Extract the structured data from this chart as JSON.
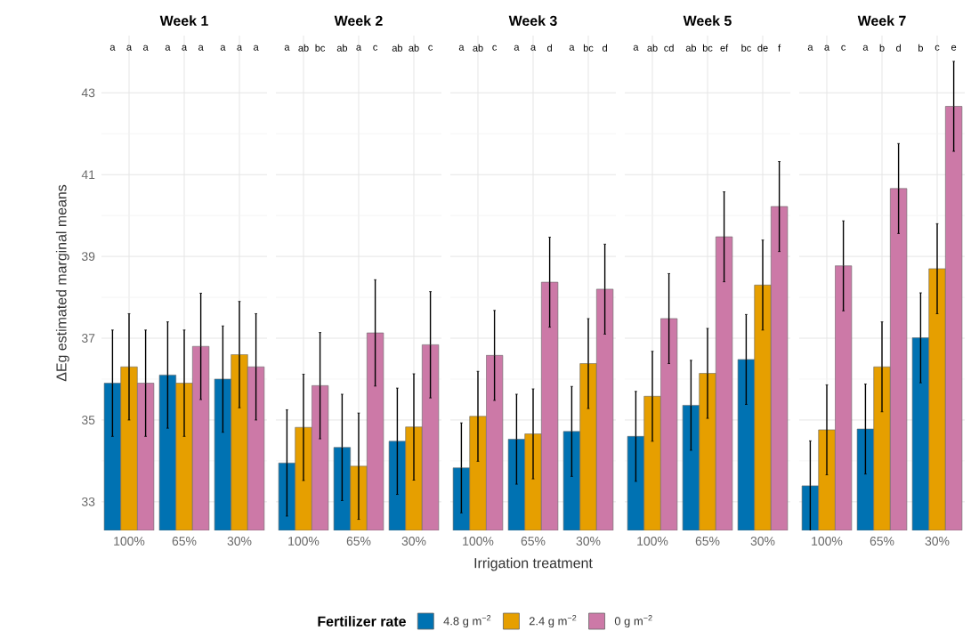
{
  "chart_data": [
    {
      "type": "bar",
      "title": "Week 1",
      "ylabel": "ΔEg estimated marginal means",
      "legend_title": "Fertilizer rate",
      "legend": "bottom",
      "grid": true,
      "categories": [
        "100%",
        "65%",
        "30%"
      ],
      "ylim": [
        32.3,
        44.4
      ],
      "yticks": [
        33,
        35,
        37,
        39,
        41,
        43
      ],
      "series": [
        {
          "name": "4.8 g m$^{−2}$",
          "color": "#0072b2",
          "values": [
            35.9,
            36.1,
            36.0
          ],
          "errors": [
            1.3,
            1.3,
            1.3
          ]
        },
        {
          "name": "2.4 g m$^{−2}$",
          "color": "#e69f00",
          "values": [
            36.3,
            35.9,
            36.6
          ],
          "errors": [
            1.3,
            1.3,
            1.3
          ]
        },
        {
          "name": "0 g m$^{−2}$",
          "color": "#cc79a7",
          "values": [
            35.9,
            36.8,
            36.3
          ],
          "errors": [
            1.3,
            1.3,
            1.3
          ]
        }
      ],
      "annotations": [
        "a",
        "a",
        "a",
        "a",
        "a",
        "a",
        "a",
        "a",
        "a"
      ]
    },
    {
      "type": "bar",
      "title": "Week 2",
      "grid": true,
      "tick_labels": "x",
      "categories": [
        "100%",
        "65%",
        "30%"
      ],
      "ylim": [
        32.3,
        44.4
      ],
      "yticks": [
        33,
        35,
        37,
        39,
        41,
        43
      ],
      "series": [
        {
          "color": "#0072b2",
          "values": [
            33.95,
            34.33,
            34.48
          ],
          "errors": [
            1.3,
            1.3,
            1.3
          ]
        },
        {
          "color": "#e69f00",
          "values": [
            34.82,
            33.87,
            34.83
          ],
          "errors": [
            1.3,
            1.3,
            1.3
          ]
        },
        {
          "color": "#cc79a7",
          "values": [
            35.84,
            37.13,
            36.84
          ],
          "errors": [
            1.3,
            1.3,
            1.3
          ]
        }
      ],
      "annotations": [
        "a",
        "ab",
        "bc",
        "ab",
        "a",
        "c",
        "ab",
        "ab",
        "c"
      ]
    },
    {
      "type": "bar",
      "title": "Week 3",
      "xlabel": "Irrigation treatment",
      "grid": true,
      "tick_labels": "x",
      "categories": [
        "100%",
        "65%",
        "30%"
      ],
      "ylim": [
        32.3,
        44.4
      ],
      "yticks": [
        33,
        35,
        37,
        39,
        41,
        43
      ],
      "series": [
        {
          "color": "#0072b2",
          "values": [
            33.83,
            34.53,
            34.72
          ],
          "errors": [
            1.1,
            1.1,
            1.1
          ]
        },
        {
          "color": "#e69f00",
          "values": [
            35.09,
            34.66,
            36.38
          ],
          "errors": [
            1.1,
            1.1,
            1.1
          ]
        },
        {
          "color": "#cc79a7",
          "values": [
            36.58,
            38.37,
            38.2
          ],
          "errors": [
            1.1,
            1.1,
            1.1
          ]
        }
      ],
      "annotations": [
        "a",
        "ab",
        "c",
        "a",
        "a",
        "d",
        "a",
        "bc",
        "d"
      ]
    },
    {
      "type": "bar",
      "title": "Week 5",
      "grid": true,
      "tick_labels": "x",
      "categories": [
        "100%",
        "65%",
        "30%"
      ],
      "ylim": [
        32.3,
        44.4
      ],
      "yticks": [
        33,
        35,
        37,
        39,
        41,
        43
      ],
      "series": [
        {
          "color": "#0072b2",
          "values": [
            34.6,
            35.36,
            36.48
          ],
          "errors": [
            1.1,
            1.1,
            1.1
          ]
        },
        {
          "color": "#e69f00",
          "values": [
            35.58,
            36.14,
            38.3
          ],
          "errors": [
            1.1,
            1.1,
            1.1
          ]
        },
        {
          "color": "#cc79a7",
          "values": [
            37.48,
            39.48,
            40.22
          ],
          "errors": [
            1.1,
            1.1,
            1.1
          ]
        }
      ],
      "annotations": [
        "a",
        "ab",
        "cd",
        "ab",
        "bc",
        "ef",
        "bc",
        "de",
        "f"
      ]
    },
    {
      "type": "bar",
      "title": "Week 7",
      "grid": true,
      "tick_labels": "x",
      "categories": [
        "100%",
        "65%",
        "30%"
      ],
      "ylim": [
        32.3,
        44.4
      ],
      "yticks": [
        33,
        35,
        37,
        39,
        41,
        43
      ],
      "series": [
        {
          "color": "#0072b2",
          "values": [
            33.39,
            34.78,
            37.01
          ],
          "errors": [
            1.1,
            1.1,
            1.1
          ]
        },
        {
          "color": "#e69f00",
          "values": [
            34.76,
            36.3,
            38.7
          ],
          "errors": [
            1.1,
            1.1,
            1.1
          ]
        },
        {
          "color": "#cc79a7",
          "values": [
            38.77,
            40.66,
            42.67
          ],
          "errors": [
            1.1,
            1.1,
            1.1
          ]
        }
      ],
      "annotations": [
        "a",
        "a",
        "c",
        "a",
        "b",
        "d",
        "b",
        "c",
        "e"
      ]
    }
  ]
}
